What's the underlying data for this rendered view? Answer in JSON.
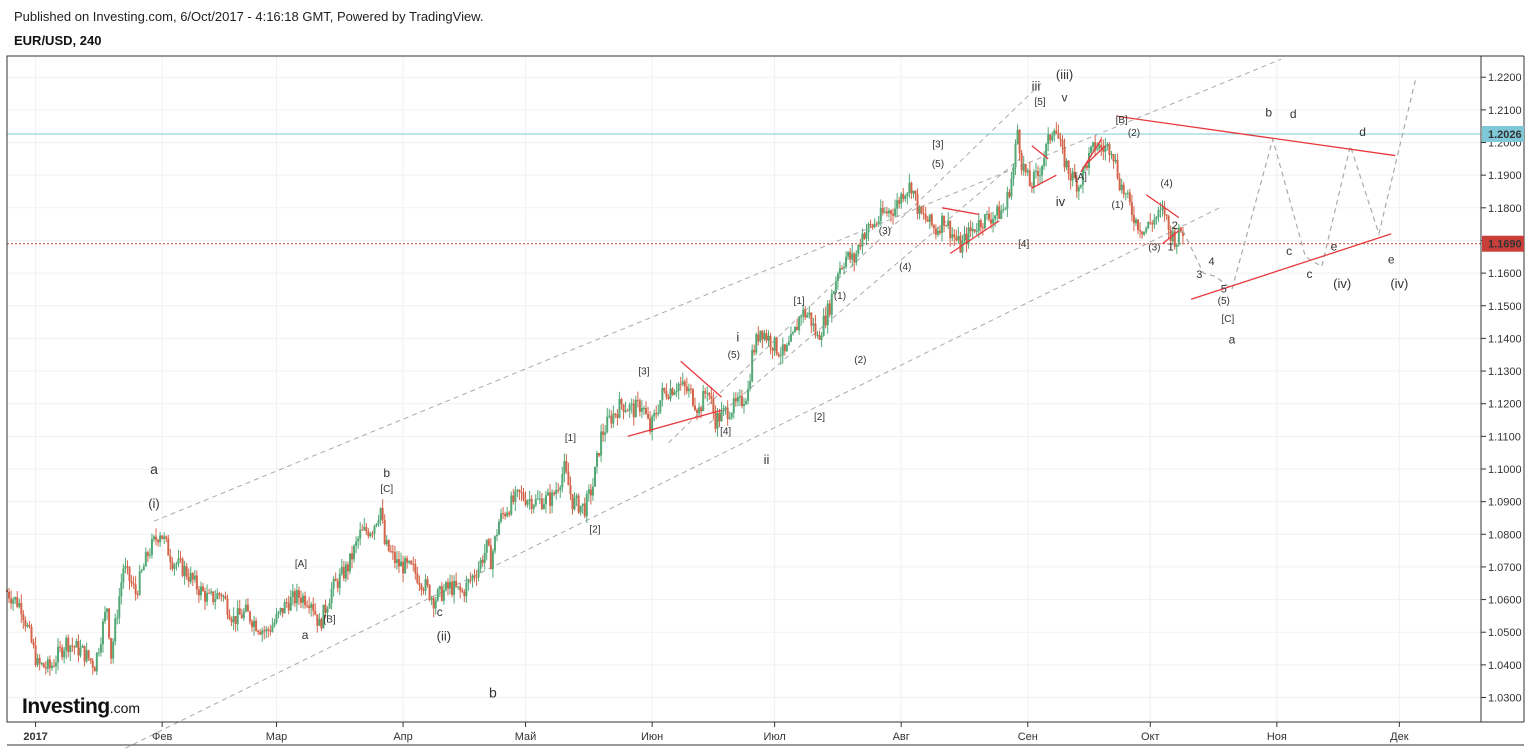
{
  "header": {
    "published": "Published on Investing.com, 6/Oct/2017 - 4:16:18 GMT, Powered by TradingView.",
    "symbol": "EUR/USD, 240"
  },
  "logo": {
    "brand": "Investing",
    "tld": ".com"
  },
  "chart_data": {
    "type": "candlestick",
    "symbol": "EUR/USD",
    "timeframe": "240",
    "x_axis": {
      "ticks": [
        "2017",
        "Фев",
        "Мар",
        "Апр",
        "Май",
        "Июн",
        "Июл",
        "Авг",
        "Сен",
        "Окт",
        "Ноя",
        "Дек"
      ],
      "tick_days": [
        0,
        31,
        59,
        90,
        120,
        151,
        181,
        212,
        243,
        273,
        304,
        334
      ],
      "range_days": [
        -7,
        354
      ]
    },
    "y_axis": {
      "ticks": [
        "1.0300",
        "1.0400",
        "1.0500",
        "1.0600",
        "1.0700",
        "1.0800",
        "1.0900",
        "1.1000",
        "1.1100",
        "1.1200",
        "1.1300",
        "1.1400",
        "1.1500",
        "1.1600",
        "1.1700",
        "1.1800",
        "1.1900",
        "1.2000",
        "1.2100",
        "1.2200"
      ],
      "range": [
        1.0225,
        1.2265
      ]
    },
    "price_labels": [
      {
        "value": 1.2026,
        "text": "1.2026",
        "color": "#7ec8d8"
      },
      {
        "value": 1.169,
        "text": "1.1690",
        "color": "#c9403a"
      }
    ],
    "colors": {
      "up": "#53a876",
      "down": "#d4654a",
      "trendline": "#e8383d",
      "channel": "#aaaaaa",
      "gold": "#f5a51e"
    },
    "price_path": [
      [
        -7,
        1.063
      ],
      [
        -3,
        1.058
      ],
      [
        1,
        1.04
      ],
      [
        4,
        1.039
      ],
      [
        8,
        1.047
      ],
      [
        12,
        1.044
      ],
      [
        15,
        1.04
      ],
      [
        18,
        1.058
      ],
      [
        19,
        1.043
      ],
      [
        22,
        1.07
      ],
      [
        25,
        1.062
      ],
      [
        28,
        1.074
      ],
      [
        31,
        1.081
      ],
      [
        34,
        1.072
      ],
      [
        37,
        1.069
      ],
      [
        40,
        1.064
      ],
      [
        43,
        1.06
      ],
      [
        46,
        1.062
      ],
      [
        49,
        1.054
      ],
      [
        52,
        1.056
      ],
      [
        55,
        1.052
      ],
      [
        57,
        1.05
      ],
      [
        59,
        1.053
      ],
      [
        62,
        1.059
      ],
      [
        65,
        1.061
      ],
      [
        68,
        1.06
      ],
      [
        70,
        1.052
      ],
      [
        73,
        1.063
      ],
      [
        77,
        1.07
      ],
      [
        80,
        1.08
      ],
      [
        83,
        1.082
      ],
      [
        85,
        1.088
      ],
      [
        86,
        1.077
      ],
      [
        89,
        1.071
      ],
      [
        93,
        1.069
      ],
      [
        96,
        1.064
      ],
      [
        98,
        1.06
      ],
      [
        102,
        1.064
      ],
      [
        105,
        1.062
      ],
      [
        109,
        1.07
      ],
      [
        111,
        1.076
      ],
      [
        112,
        1.072
      ],
      [
        114,
        1.084
      ],
      [
        116,
        1.088
      ],
      [
        119,
        1.092
      ],
      [
        123,
        1.09
      ],
      [
        127,
        1.091
      ],
      [
        130,
        1.1
      ],
      [
        132,
        1.09
      ],
      [
        135,
        1.088
      ],
      [
        137,
        1.095
      ],
      [
        139,
        1.11
      ],
      [
        141,
        1.115
      ],
      [
        144,
        1.12
      ],
      [
        147,
        1.118
      ],
      [
        149,
        1.12
      ],
      [
        151,
        1.112
      ],
      [
        154,
        1.123
      ],
      [
        158,
        1.126
      ],
      [
        161,
        1.123
      ],
      [
        163,
        1.118
      ],
      [
        165,
        1.125
      ],
      [
        167,
        1.115
      ],
      [
        170,
        1.118
      ],
      [
        173,
        1.12
      ],
      [
        175,
        1.124
      ],
      [
        176,
        1.135
      ],
      [
        178,
        1.143
      ],
      [
        180,
        1.14
      ],
      [
        182,
        1.137
      ],
      [
        184,
        1.135
      ],
      [
        186,
        1.14
      ],
      [
        188,
        1.148
      ],
      [
        190,
        1.147
      ],
      [
        192,
        1.14
      ],
      [
        195,
        1.15
      ],
      [
        197,
        1.161
      ],
      [
        199,
        1.165
      ],
      [
        201,
        1.164
      ],
      [
        203,
        1.172
      ],
      [
        206,
        1.175
      ],
      [
        208,
        1.178
      ],
      [
        211,
        1.18
      ],
      [
        213,
        1.185
      ],
      [
        215,
        1.187
      ],
      [
        217,
        1.178
      ],
      [
        219,
        1.176
      ],
      [
        221,
        1.173
      ],
      [
        223,
        1.177
      ],
      [
        225,
        1.172
      ],
      [
        227,
        1.168
      ],
      [
        229,
        1.172
      ],
      [
        232,
        1.176
      ],
      [
        236,
        1.178
      ],
      [
        238,
        1.18
      ],
      [
        240,
        1.192
      ],
      [
        241,
        1.204
      ],
      [
        242,
        1.194
      ],
      [
        244,
        1.187
      ],
      [
        246,
        1.19
      ],
      [
        248,
        1.198
      ],
      [
        250,
        1.206
      ],
      [
        252,
        1.196
      ],
      [
        254,
        1.19
      ],
      [
        256,
        1.187
      ],
      [
        258,
        1.194
      ],
      [
        260,
        1.199
      ],
      [
        262,
        1.198
      ],
      [
        264,
        1.199
      ],
      [
        266,
        1.188
      ],
      [
        268,
        1.182
      ],
      [
        270,
        1.176
      ],
      [
        272,
        1.173
      ],
      [
        274,
        1.176
      ],
      [
        277,
        1.179
      ],
      [
        278,
        1.173
      ],
      [
        280,
        1.17
      ],
      [
        281,
        1.173
      ]
    ],
    "projection_path": [
      [
        281,
        1.173
      ],
      [
        286,
        1.16
      ],
      [
        289,
        1.159
      ],
      [
        293,
        1.155
      ],
      [
        303,
        1.201
      ],
      [
        311,
        1.165
      ],
      [
        315,
        1.162
      ],
      [
        322,
        1.199
      ],
      [
        329,
        1.172
      ],
      [
        338,
        1.2195
      ]
    ],
    "channel_lines": [
      [
        [
          18,
          1.012
        ],
        [
          290,
          1.18
        ]
      ],
      [
        [
          29,
          1.084
        ],
        [
          305,
          1.2255
        ]
      ],
      [
        [
          155,
          1.108
        ],
        [
          247,
          1.219
        ]
      ],
      [
        [
          165,
          1.114
        ],
        [
          241,
          1.195
        ]
      ]
    ],
    "red_lines": [
      [
        [
          265,
          1.208
        ],
        [
          333,
          1.196
        ]
      ],
      [
        [
          283,
          1.152
        ],
        [
          332,
          1.172
        ]
      ],
      [
        [
          158,
          1.133
        ],
        [
          168,
          1.122
        ]
      ],
      [
        [
          145,
          1.11
        ],
        [
          168,
          1.118
        ]
      ],
      [
        [
          224,
          1.166
        ],
        [
          236,
          1.176
        ]
      ],
      [
        [
          222,
          1.18
        ],
        [
          231,
          1.178
        ]
      ],
      [
        [
          244,
          1.199
        ],
        [
          248,
          1.195
        ]
      ],
      [
        [
          244,
          1.186
        ],
        [
          250,
          1.19
        ]
      ],
      [
        [
          256,
          1.191
        ],
        [
          261,
          1.201
        ]
      ],
      [
        [
          257,
          1.193
        ],
        [
          262,
          1.199
        ]
      ],
      [
        [
          272,
          1.184
        ],
        [
          280,
          1.177
        ]
      ],
      [
        [
          276,
          1.169
        ],
        [
          280,
          1.173
        ]
      ]
    ],
    "h_lines": [
      {
        "value": 1.2026,
        "color": "#7ec8d8",
        "style": "solid"
      },
      {
        "value": 1.169,
        "color": "#c9403a",
        "style": "dotted"
      }
    ],
    "annotations": [
      {
        "t": "a",
        "x": 29,
        "y": 1.0985,
        "color": "gold",
        "size": 14
      },
      {
        "t": "b",
        "x": 112,
        "y": 1.03,
        "color": "gold",
        "size": 14
      },
      {
        "t": "(i)",
        "x": 29,
        "y": 1.088,
        "size": 13
      },
      {
        "t": "b",
        "x": 86,
        "y": 1.0975,
        "size": 12
      },
      {
        "t": "[C]",
        "x": 86,
        "y": 1.093,
        "size": 10
      },
      {
        "t": "[A]",
        "x": 65,
        "y": 1.07,
        "size": 10
      },
      {
        "t": "a",
        "x": 66,
        "y": 1.048,
        "size": 12
      },
      {
        "t": "[B]",
        "x": 72,
        "y": 1.053,
        "size": 10
      },
      {
        "t": "c",
        "x": 99,
        "y": 1.055,
        "size": 12
      },
      {
        "t": "(ii)",
        "x": 100,
        "y": 1.0475,
        "size": 13
      },
      {
        "t": "[1]",
        "x": 131,
        "y": 1.1085,
        "size": 10
      },
      {
        "t": "[2]",
        "x": 137,
        "y": 1.0805,
        "size": 10
      },
      {
        "t": "[3]",
        "x": 149,
        "y": 1.129,
        "size": 10
      },
      {
        "t": "[4]",
        "x": 169,
        "y": 1.1105,
        "size": 10
      },
      {
        "t": "(5)",
        "x": 171,
        "y": 1.134,
        "size": 10
      },
      {
        "t": "i",
        "x": 172,
        "y": 1.139,
        "size": 13
      },
      {
        "t": "ii",
        "x": 179,
        "y": 1.1015,
        "size": 13
      },
      {
        "t": "[2]",
        "x": 192,
        "y": 1.115,
        "size": 10
      },
      {
        "t": "[1]",
        "x": 187,
        "y": 1.1505,
        "size": 10
      },
      {
        "t": "(1)",
        "x": 197,
        "y": 1.152,
        "size": 10
      },
      {
        "t": "(2)",
        "x": 202,
        "y": 1.1325,
        "size": 10
      },
      {
        "t": "(3)",
        "x": 208,
        "y": 1.172,
        "size": 10
      },
      {
        "t": "(4)",
        "x": 213,
        "y": 1.161,
        "size": 10
      },
      {
        "t": "[3]",
        "x": 221,
        "y": 1.1985,
        "size": 10
      },
      {
        "t": "(5)",
        "x": 221,
        "y": 1.1925,
        "size": 10
      },
      {
        "t": "[4]",
        "x": 242,
        "y": 1.168,
        "size": 10
      },
      {
        "t": "iii",
        "x": 245,
        "y": 1.216,
        "size": 13
      },
      {
        "t": "[5]",
        "x": 246,
        "y": 1.2115,
        "size": 10
      },
      {
        "t": "(iii)",
        "x": 252,
        "y": 1.2195,
        "size": 13
      },
      {
        "t": "v",
        "x": 252,
        "y": 1.2125,
        "size": 12
      },
      {
        "t": "iv",
        "x": 251,
        "y": 1.1805,
        "size": 13
      },
      {
        "t": "[A]",
        "x": 256,
        "y": 1.1885,
        "size": 10
      },
      {
        "t": "(1)",
        "x": 265,
        "y": 1.18,
        "size": 10
      },
      {
        "t": "[B]",
        "x": 266,
        "y": 1.206,
        "size": 10
      },
      {
        "t": "(2)",
        "x": 269,
        "y": 1.202,
        "size": 10
      },
      {
        "t": "(3)",
        "x": 274,
        "y": 1.167,
        "size": 10
      },
      {
        "t": "(4)",
        "x": 277,
        "y": 1.1865,
        "size": 10
      },
      {
        "t": "2",
        "x": 279,
        "y": 1.1735,
        "size": 11
      },
      {
        "t": "1",
        "x": 278,
        "y": 1.167,
        "size": 11
      },
      {
        "t": "4",
        "x": 288,
        "y": 1.1625,
        "size": 11
      },
      {
        "t": "3",
        "x": 285,
        "y": 1.1585,
        "size": 11
      },
      {
        "t": "5",
        "x": 291,
        "y": 1.154,
        "size": 11
      },
      {
        "t": "(5)",
        "x": 291,
        "y": 1.1505,
        "size": 10
      },
      {
        "t": "[C]",
        "x": 292,
        "y": 1.145,
        "size": 10
      },
      {
        "t": "a",
        "x": 293,
        "y": 1.1385,
        "size": 12
      },
      {
        "t": "b",
        "x": 302,
        "y": 1.208,
        "size": 12
      },
      {
        "t": "d",
        "x": 308,
        "y": 1.2075,
        "size": 12
      },
      {
        "t": "c",
        "x": 307,
        "y": 1.1655,
        "size": 12
      },
      {
        "t": "c",
        "x": 312,
        "y": 1.1585,
        "size": 12
      },
      {
        "t": "e",
        "x": 318,
        "y": 1.167,
        "size": 12
      },
      {
        "t": "(iv)",
        "x": 320,
        "y": 1.1555,
        "size": 13
      },
      {
        "t": "d",
        "x": 325,
        "y": 1.202,
        "size": 12
      },
      {
        "t": "e",
        "x": 332,
        "y": 1.163,
        "size": 12
      },
      {
        "t": "(iv)",
        "x": 334,
        "y": 1.1555,
        "size": 13
      }
    ]
  }
}
